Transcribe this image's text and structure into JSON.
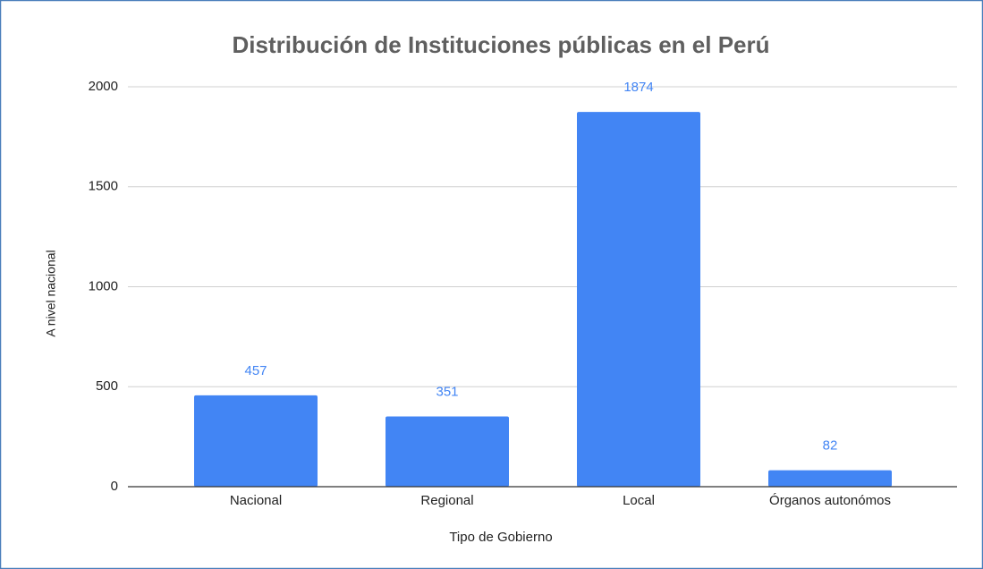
{
  "chart_data": {
    "type": "bar",
    "title": "Distribución de Instituciones públicas en el Perú",
    "x_label": "Tipo de Gobierno",
    "y_label": "A nivel nacional",
    "categories": [
      "Nacional",
      "Regional",
      "Local",
      "Órganos autonómos"
    ],
    "values": [
      457,
      351,
      1874,
      82
    ],
    "color": "#4285f4",
    "ylim": [
      0,
      2000
    ],
    "yticks": [
      0,
      500,
      1000,
      1500,
      2000
    ],
    "grid": true
  }
}
